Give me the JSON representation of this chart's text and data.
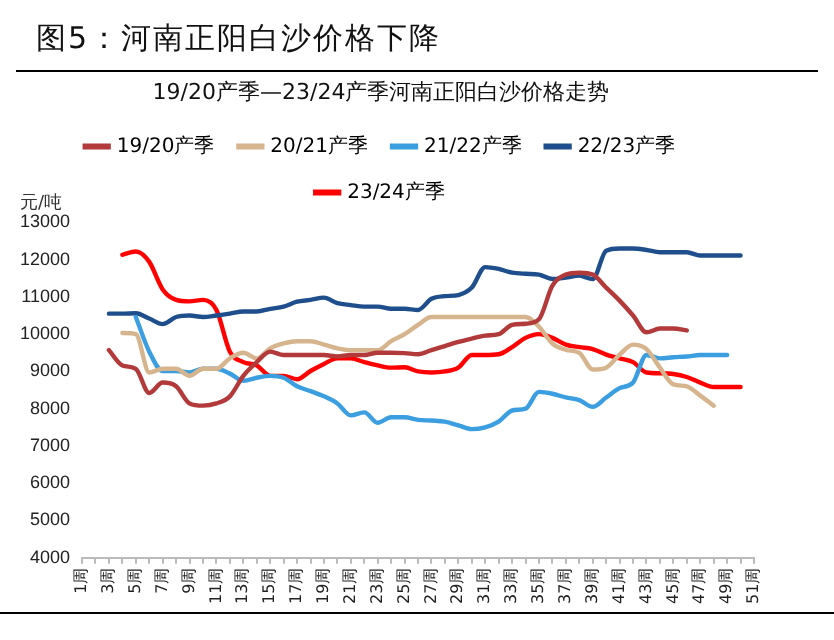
{
  "chart_data": {
    "type": "line",
    "title": "图5：河南正阳白沙价格下降",
    "subtitle": "19/20产季—23/24产季河南正阳白沙价格走势",
    "ylabel": "元/吨",
    "categories": [
      "1周",
      null,
      "3周",
      null,
      "5周",
      null,
      "7周",
      null,
      "9周",
      null,
      "11周",
      null,
      "13周",
      null,
      "15周",
      null,
      "17周",
      null,
      "19周",
      null,
      "21周",
      null,
      "23周",
      null,
      "25周",
      null,
      "27周",
      null,
      "29周",
      null,
      "31周",
      null,
      "33周",
      null,
      "35周",
      null,
      "37周",
      null,
      "39周",
      null,
      "41周",
      null,
      "43周",
      null,
      "45周",
      null,
      "47周",
      null,
      "49周",
      null,
      "51周"
    ],
    "series": [
      {
        "name": "19/20产季",
        "color": "#b23a3a",
        "values": [
          null,
          null,
          9570,
          9160,
          9070,
          8420,
          8700,
          8600,
          8140,
          8080,
          8140,
          8330,
          8880,
          9250,
          9530,
          9440,
          9440,
          9440,
          9440,
          9400,
          9440,
          9440,
          9500,
          9500,
          9490,
          9460,
          9570,
          9680,
          9790,
          9880,
          9960,
          10000,
          10250,
          10280,
          10400,
          11300,
          11600,
          11650,
          11600,
          11250,
          10900,
          10500,
          10050,
          10150,
          10150,
          10100,
          null,
          null,
          null,
          null,
          null
        ]
      },
      {
        "name": "20/21产季",
        "color": "#d6b48e",
        "values": [
          null,
          null,
          null,
          10030,
          10000,
          8970,
          9070,
          9070,
          8880,
          9070,
          9070,
          9350,
          9500,
          9350,
          9620,
          9750,
          9810,
          9810,
          9720,
          9620,
          9570,
          9570,
          9570,
          9810,
          10000,
          10250,
          10460,
          10460,
          10460,
          10460,
          10460,
          10460,
          10460,
          10460,
          10200,
          9750,
          9580,
          9500,
          9050,
          9100,
          9450,
          9720,
          9600,
          9100,
          8650,
          8600,
          8350,
          8080,
          null,
          null,
          null
        ]
      },
      {
        "name": "21/22产季",
        "color": "#3a9ee0",
        "values": [
          null,
          null,
          null,
          null,
          10460,
          9530,
          9010,
          9010,
          8970,
          9070,
          9070,
          8940,
          8750,
          8830,
          8880,
          8830,
          8600,
          8470,
          8330,
          8140,
          7820,
          7900,
          7620,
          7770,
          7770,
          7700,
          7680,
          7650,
          7550,
          7450,
          7500,
          7650,
          7950,
          8000,
          8450,
          8400,
          8300,
          8230,
          8050,
          8300,
          8550,
          8700,
          9440,
          9350,
          9380,
          9400,
          9440,
          9440,
          9440,
          null,
          null
        ]
      },
      {
        "name": "22/23产季",
        "color": "#1f4e8c",
        "values": [
          null,
          null,
          10550,
          10550,
          10560,
          10420,
          10270,
          10460,
          10500,
          10460,
          10500,
          10550,
          10610,
          10610,
          10680,
          10740,
          10870,
          10920,
          10980,
          10830,
          10780,
          10740,
          10740,
          10680,
          10680,
          10650,
          10950,
          11020,
          11050,
          11250,
          11800,
          11750,
          11650,
          11620,
          11600,
          11480,
          11520,
          11570,
          11480,
          12240,
          12300,
          12300,
          12260,
          12200,
          12200,
          12200,
          12110,
          12110,
          12110,
          12110,
          null
        ]
      },
      {
        "name": "23/24产季",
        "color": "#ff0000",
        "values": [
          null,
          null,
          null,
          12130,
          12220,
          11940,
          11200,
          10920,
          10880,
          10920,
          10650,
          9530,
          9250,
          9160,
          8880,
          8880,
          8790,
          9010,
          9200,
          9350,
          9350,
          9250,
          9160,
          9100,
          9110,
          9000,
          8970,
          9000,
          9100,
          9440,
          9440,
          9460,
          9650,
          9900,
          10000,
          9900,
          9720,
          9650,
          9600,
          9450,
          9350,
          9250,
          8970,
          8950,
          8930,
          8850,
          8700,
          8580,
          8580,
          8580,
          null
        ]
      }
    ],
    "ylim": [
      4000,
      13000
    ],
    "yticks": [
      4000,
      5000,
      6000,
      7000,
      8000,
      9000,
      10000,
      11000,
      12000,
      13000
    ],
    "grid": false,
    "legend": "top",
    "marker": "none",
    "line_style": "solid"
  }
}
